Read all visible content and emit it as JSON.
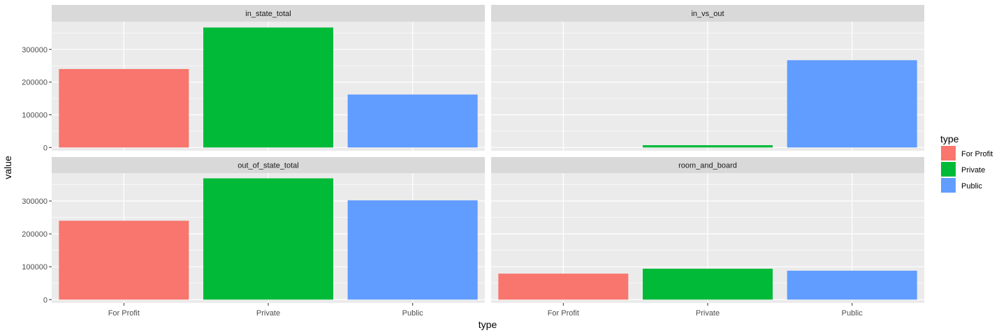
{
  "chart_data": {
    "type": "bar",
    "facet": "grid",
    "xlabel": "type",
    "ylabel": "value",
    "categories": [
      "For Profit",
      "Private",
      "Public"
    ],
    "ylim": [
      -10000,
      385000
    ],
    "yticks": [
      0,
      100000,
      200000,
      300000
    ],
    "ytick_labels": [
      "0",
      "100000",
      "200000",
      "300000"
    ],
    "grid": true,
    "legend": {
      "title": "type",
      "position": "right",
      "entries": [
        "For Profit",
        "Private",
        "Public"
      ]
    },
    "colors": {
      "For Profit": "#F8766D",
      "Private": "#00BA38",
      "Public": "#619CFF"
    },
    "panels": [
      {
        "name": "in_state_total",
        "values": [
          240000,
          367000,
          162000
        ]
      },
      {
        "name": "in_vs_out",
        "values": [
          0,
          7000,
          267000
        ]
      },
      {
        "name": "out_of_state_total",
        "values": [
          240000,
          369000,
          302000
        ]
      },
      {
        "name": "room_and_board",
        "values": [
          79000,
          94000,
          88000
        ]
      }
    ]
  }
}
